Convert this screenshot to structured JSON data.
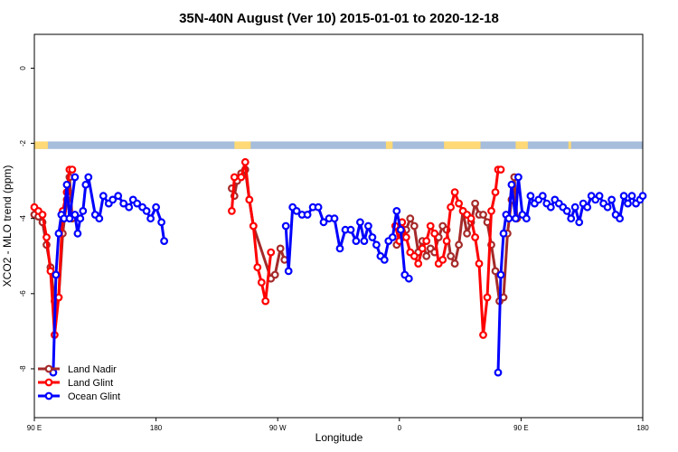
{
  "chart_data": {
    "type": "line",
    "title": "35N-40N August (Ver 10)   2015-01-01 to 2020-12-18",
    "xlabel": "Longitude",
    "ylabel": "XCO2 - MLO trend (ppm)",
    "xlim": [
      90,
      540
    ],
    "ylim": [
      -9.3,
      0.9
    ],
    "x_ticks": [
      {
        "value": 90,
        "label": "90 E"
      },
      {
        "value": 180,
        "label": "180"
      },
      {
        "value": 270,
        "label": "90 W"
      },
      {
        "value": 360,
        "label": "0"
      },
      {
        "value": 450,
        "label": "90 E"
      },
      {
        "value": 540,
        "label": "180"
      }
    ],
    "y_ticks": [
      {
        "value": 0,
        "label": "0"
      },
      {
        "value": -2,
        "label": "-2"
      },
      {
        "value": -4,
        "label": "-4"
      },
      {
        "value": -6,
        "label": "-6"
      },
      {
        "value": -8,
        "label": "-8"
      }
    ],
    "land_ocean_strip": {
      "y_top": -1.95,
      "y_bottom": -2.15,
      "ocean_color": "#a6bddb",
      "land_color": "#fed976",
      "land_ranges": [
        [
          90,
          100
        ],
        [
          238,
          250
        ],
        [
          350,
          355
        ],
        [
          393,
          420
        ],
        [
          446,
          455
        ],
        [
          485,
          487
        ]
      ]
    },
    "legend": {
      "position": "bottom-left",
      "entries": [
        "Land Nadir",
        "Land Glint",
        "Ocean Glint"
      ]
    },
    "series": [
      {
        "name": "Land Nadir",
        "color": "#a52a2a",
        "segments": [
          [
            [
              90,
              -3.9
            ],
            [
              93,
              -3.95
            ],
            [
              96,
              -4.1
            ],
            [
              99,
              -4.7
            ],
            [
              102,
              -5.3
            ],
            [
              105,
              -6.2
            ],
            [
              108,
              -6.1
            ],
            [
              111,
              -4.4
            ],
            [
              114,
              -3.5
            ],
            [
              116,
              -2.9
            ],
            [
              118,
              -4.0
            ]
          ],
          [
            [
              236,
              -3.2
            ],
            [
              238,
              -3.4
            ],
            [
              240,
              -3.0
            ],
            [
              243,
              -2.8
            ],
            [
              246,
              -2.7
            ],
            [
              249,
              -3.5
            ],
            [
              252,
              -4.2
            ],
            [
              265,
              -5.6
            ],
            [
              268,
              -5.5
            ],
            [
              272,
              -4.8
            ],
            [
              275,
              -5.1
            ]
          ],
          [
            [
              358,
              -4.7
            ],
            [
              362,
              -4.5
            ],
            [
              365,
              -4.3
            ],
            [
              368,
              -4.0
            ],
            [
              371,
              -4.2
            ],
            [
              374,
              -4.9
            ],
            [
              377,
              -4.6
            ],
            [
              380,
              -5.0
            ],
            [
              383,
              -4.8
            ],
            [
              386,
              -4.9
            ],
            [
              389,
              -4.5
            ],
            [
              392,
              -4.2
            ],
            [
              395,
              -4.3
            ],
            [
              398,
              -5.0
            ],
            [
              401,
              -5.2
            ],
            [
              404,
              -4.7
            ],
            [
              407,
              -3.8
            ],
            [
              410,
              -4.4
            ],
            [
              413,
              -4.1
            ],
            [
              416,
              -3.6
            ],
            [
              419,
              -3.9
            ],
            [
              422,
              -3.9
            ],
            [
              425,
              -4.1
            ],
            [
              428,
              -4.7
            ],
            [
              431,
              -5.4
            ],
            [
              434,
              -6.2
            ],
            [
              437,
              -6.1
            ],
            [
              440,
              -4.4
            ],
            [
              443,
              -3.5
            ],
            [
              445,
              -2.9
            ],
            [
              447,
              -4.0
            ]
          ]
        ]
      },
      {
        "name": "Land Glint",
        "color": "#ff0000",
        "segments": [
          [
            [
              90,
              -3.7
            ],
            [
              93,
              -3.8
            ],
            [
              96,
              -3.9
            ],
            [
              99,
              -4.5
            ],
            [
              102,
              -5.4
            ],
            [
              105,
              -7.1
            ],
            [
              108,
              -6.1
            ],
            [
              111,
              -3.8
            ],
            [
              114,
              -3.3
            ],
            [
              116,
              -2.7
            ],
            [
              118,
              -2.7
            ]
          ],
          [
            [
              236,
              -3.8
            ],
            [
              238,
              -2.9
            ],
            [
              243,
              -2.9
            ],
            [
              246,
              -2.5
            ],
            [
              249,
              -3.5
            ],
            [
              252,
              -4.2
            ],
            [
              255,
              -5.3
            ],
            [
              258,
              -5.7
            ],
            [
              261,
              -6.2
            ],
            [
              265,
              -4.9
            ]
          ],
          [
            [
              357,
              -4.2
            ],
            [
              360,
              -4.6
            ],
            [
              362,
              -4.1
            ],
            [
              365,
              -4.5
            ],
            [
              368,
              -4.9
            ],
            [
              371,
              -5.0
            ],
            [
              374,
              -5.2
            ],
            [
              377,
              -4.8
            ],
            [
              380,
              -4.6
            ],
            [
              383,
              -4.2
            ],
            [
              386,
              -4.4
            ],
            [
              389,
              -5.2
            ],
            [
              392,
              -5.1
            ],
            [
              395,
              -4.6
            ],
            [
              398,
              -3.7
            ],
            [
              401,
              -3.3
            ],
            [
              404,
              -3.6
            ],
            [
              407,
              -3.8
            ],
            [
              410,
              -3.9
            ],
            [
              413,
              -4.0
            ],
            [
              416,
              -4.5
            ],
            [
              419,
              -5.2
            ],
            [
              422,
              -7.1
            ],
            [
              425,
              -6.1
            ],
            [
              428,
              -3.8
            ],
            [
              431,
              -3.3
            ],
            [
              433,
              -2.7
            ],
            [
              435,
              -2.7
            ]
          ]
        ]
      },
      {
        "name": "Ocean Glint",
        "color": "#0000ff",
        "segments": [
          [
            [
              120,
              -3.9
            ],
            [
              122,
              -4.4
            ],
            [
              124,
              -4.0
            ],
            [
              126,
              -3.8
            ],
            [
              128,
              -3.1
            ],
            [
              130,
              -2.9
            ],
            [
              135,
              -3.9
            ],
            [
              138,
              -4.0
            ],
            [
              141,
              -3.4
            ],
            [
              145,
              -3.6
            ],
            [
              148,
              -3.5
            ],
            [
              152,
              -3.4
            ],
            [
              156,
              -3.6
            ],
            [
              160,
              -3.7
            ],
            [
              163,
              -3.5
            ],
            [
              166,
              -3.6
            ],
            [
              170,
              -3.7
            ],
            [
              173,
              -3.8
            ],
            [
              176,
              -4.0
            ],
            [
              180,
              -3.7
            ],
            [
              184,
              -4.1
            ],
            [
              186,
              -4.6
            ]
          ],
          [
            [
              104,
              -8.1
            ],
            [
              106,
              -5.5
            ],
            [
              108,
              -4.4
            ],
            [
              110,
              -3.9
            ],
            [
              112,
              -4.0
            ],
            [
              114,
              -3.1
            ],
            [
              116,
              -4.0
            ],
            [
              120,
              -2.9
            ]
          ],
          [
            [
              276,
              -4.2
            ],
            [
              278,
              -5.4
            ],
            [
              281,
              -3.7
            ],
            [
              284,
              -3.8
            ],
            [
              288,
              -3.9
            ],
            [
              292,
              -3.9
            ],
            [
              296,
              -3.7
            ],
            [
              300,
              -3.7
            ],
            [
              304,
              -4.1
            ],
            [
              308,
              -4.0
            ],
            [
              312,
              -4.0
            ],
            [
              316,
              -4.8
            ],
            [
              320,
              -4.3
            ],
            [
              324,
              -4.3
            ],
            [
              328,
              -4.6
            ],
            [
              331,
              -4.1
            ],
            [
              334,
              -4.6
            ],
            [
              337,
              -4.2
            ],
            [
              340,
              -4.5
            ],
            [
              343,
              -4.7
            ],
            [
              346,
              -5.0
            ],
            [
              349,
              -5.1
            ],
            [
              352,
              -4.6
            ],
            [
              355,
              -4.5
            ],
            [
              358,
              -3.8
            ],
            [
              361,
              -4.3
            ],
            [
              364,
              -5.5
            ],
            [
              367,
              -5.6
            ]
          ],
          [
            [
              433,
              -8.1
            ],
            [
              435,
              -5.5
            ],
            [
              437,
              -4.4
            ],
            [
              439,
              -3.9
            ],
            [
              441,
              -4.0
            ],
            [
              443,
              -3.1
            ],
            [
              446,
              -4.0
            ],
            [
              448,
              -2.9
            ],
            [
              451,
              -3.9
            ],
            [
              454,
              -4.0
            ],
            [
              457,
              -3.4
            ],
            [
              460,
              -3.6
            ],
            [
              463,
              -3.5
            ],
            [
              466,
              -3.4
            ],
            [
              469,
              -3.6
            ],
            [
              472,
              -3.7
            ],
            [
              475,
              -3.5
            ],
            [
              478,
              -3.6
            ],
            [
              481,
              -3.7
            ],
            [
              484,
              -3.8
            ],
            [
              487,
              -4.0
            ],
            [
              490,
              -3.7
            ],
            [
              493,
              -4.1
            ],
            [
              496,
              -3.6
            ],
            [
              499,
              -3.7
            ],
            [
              502,
              -3.4
            ],
            [
              505,
              -3.5
            ],
            [
              508,
              -3.4
            ],
            [
              511,
              -3.6
            ],
            [
              514,
              -3.7
            ],
            [
              517,
              -3.5
            ],
            [
              520,
              -3.9
            ],
            [
              523,
              -4.0
            ],
            [
              526,
              -3.4
            ],
            [
              529,
              -3.6
            ],
            [
              532,
              -3.4
            ],
            [
              535,
              -3.6
            ],
            [
              538,
              -3.5
            ],
            [
              540,
              -3.4
            ]
          ]
        ]
      }
    ]
  }
}
